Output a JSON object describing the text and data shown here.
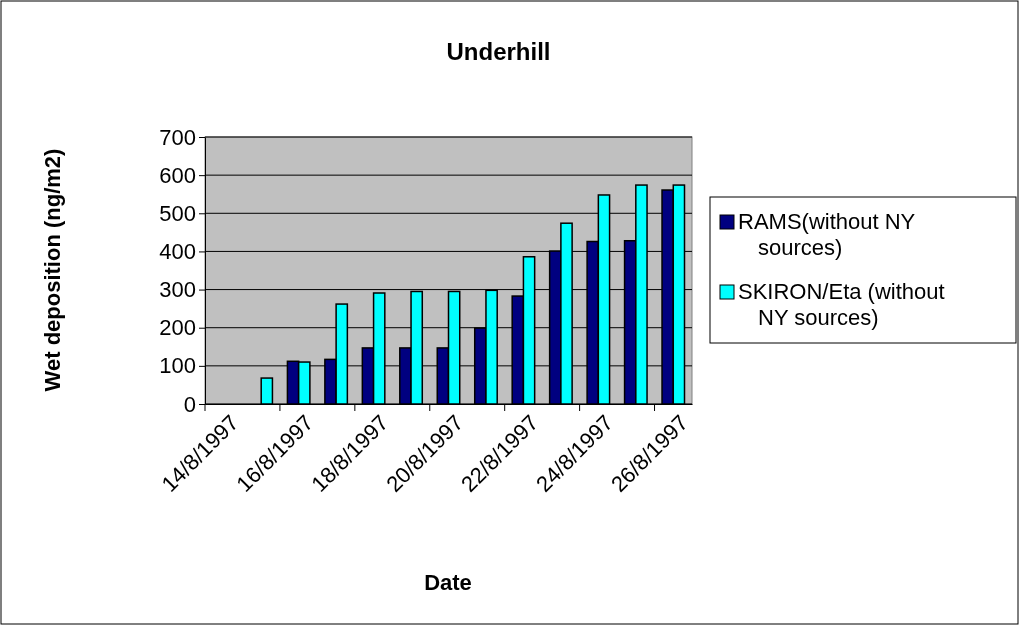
{
  "chart_data": {
    "type": "bar",
    "title": "Underhill",
    "xlabel": "Date",
    "ylabel": "Wet deposition (ng/m2)",
    "categories": [
      "14/8/1997",
      null,
      "16/8/1997",
      null,
      "18/8/1997",
      null,
      "20/8/1997",
      null,
      "22/8/1997",
      null,
      "24/8/1997",
      null,
      "26/8/1997"
    ],
    "series": [
      {
        "name": "RAMS(without NY sources)",
        "color": "#000080",
        "values": [
          0,
          0,
          112,
          117,
          147,
          147,
          147,
          199,
          283,
          401,
          426,
          428,
          561
        ]
      },
      {
        "name": "SKIRON/Eta (without NY sources)",
        "color": "#00ffff",
        "values": [
          0,
          68,
          110,
          262,
          291,
          295,
          295,
          298,
          386,
          474,
          548,
          574,
          574
        ]
      }
    ],
    "ylim": [
      0,
      700
    ],
    "yticks": [
      0,
      100,
      200,
      300,
      400,
      500,
      600,
      700
    ],
    "grid": "y",
    "legend": "right"
  }
}
